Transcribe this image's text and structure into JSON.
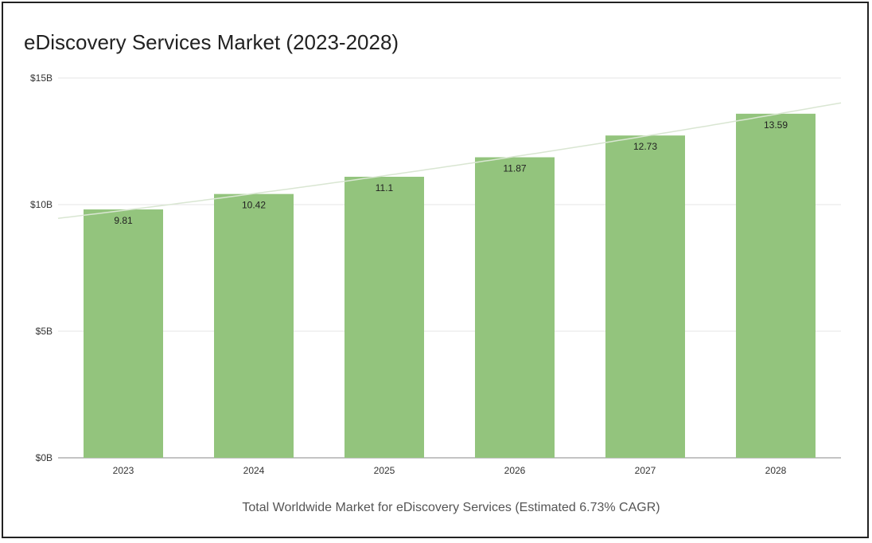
{
  "chart_data": {
    "type": "bar",
    "title": "eDiscovery Services Market (2023-2028)",
    "xlabel": "Total Worldwide Market for eDiscovery Services (Estimated 6.73% CAGR)",
    "ylabel": "",
    "categories": [
      "2023",
      "2024",
      "2025",
      "2026",
      "2027",
      "2028"
    ],
    "values": [
      9.81,
      10.42,
      11.1,
      11.87,
      12.73,
      13.59
    ],
    "data_labels": [
      "9.81",
      "10.42",
      "11.1",
      "11.87",
      "12.73",
      "13.59"
    ],
    "ylim": [
      0,
      15
    ],
    "yticks": [
      0,
      5,
      10,
      15
    ],
    "ytick_labels": [
      "$0B",
      "$5B",
      "$10B",
      "$15B"
    ],
    "grid": true,
    "legend": "none",
    "trendline": "exponential",
    "colors": {
      "bar": "#93c47d",
      "trendline": "#d9e6d2",
      "grid": "#e6e6e6",
      "axis": "#888888"
    }
  }
}
